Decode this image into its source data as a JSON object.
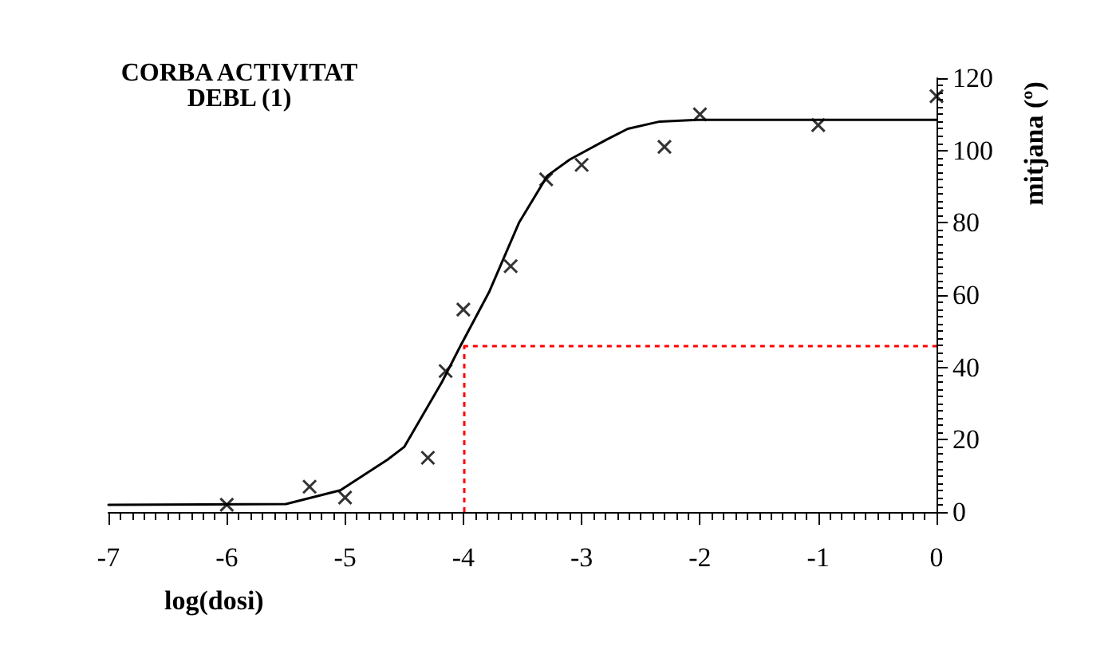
{
  "chart_data": {
    "type": "scatter",
    "title": "CORBA ACTIVITAT\nDEBL (1)",
    "xlabel": "log(dosi)",
    "ylabel": "mitjana (º)",
    "series": [
      {
        "color": "#000000",
        "marker": "cross",
        "x": [
          -6,
          -5.3,
          -5,
          -4.3,
          -4.15,
          -4,
          -3.6,
          -3.3,
          -3,
          -2.3,
          -2,
          -1,
          0
        ],
        "values": [
          2,
          7,
          4,
          15,
          39,
          56,
          68,
          92,
          96,
          101,
          110,
          107,
          115
        ]
      },
      {
        "type": "line",
        "color": "#000000",
        "marker": "none",
        "line_style": "solid",
        "x": [
          -7,
          -5.5,
          -5.04,
          -4.64,
          -4.5,
          -4.18,
          -4.03,
          -3.78,
          -3.53,
          -3.29,
          -3.1,
          -2.79,
          -2.61,
          -2.34,
          -2.02,
          0
        ],
        "values": [
          2,
          2.2,
          6,
          14.5,
          18,
          36,
          45.6,
          61,
          80,
          93,
          97.5,
          103,
          106,
          108,
          108.5,
          108.5
        ]
      }
    ],
    "xlim": [
      -7,
      0
    ],
    "xticks": [
      -7,
      -6,
      -5,
      -4,
      -3,
      -2,
      -1,
      0
    ],
    "ylim": [
      0,
      120
    ],
    "yticks": [
      0,
      20,
      40,
      60,
      80,
      100,
      120
    ],
    "ref_lines": [
      {
        "axis": "x",
        "value": -4,
        "color": "#ff0000",
        "line_style": "dotted"
      },
      {
        "axis": "y",
        "value": 46,
        "color": "#ff0000",
        "line_style": "dotted"
      }
    ],
    "grid": false
  }
}
